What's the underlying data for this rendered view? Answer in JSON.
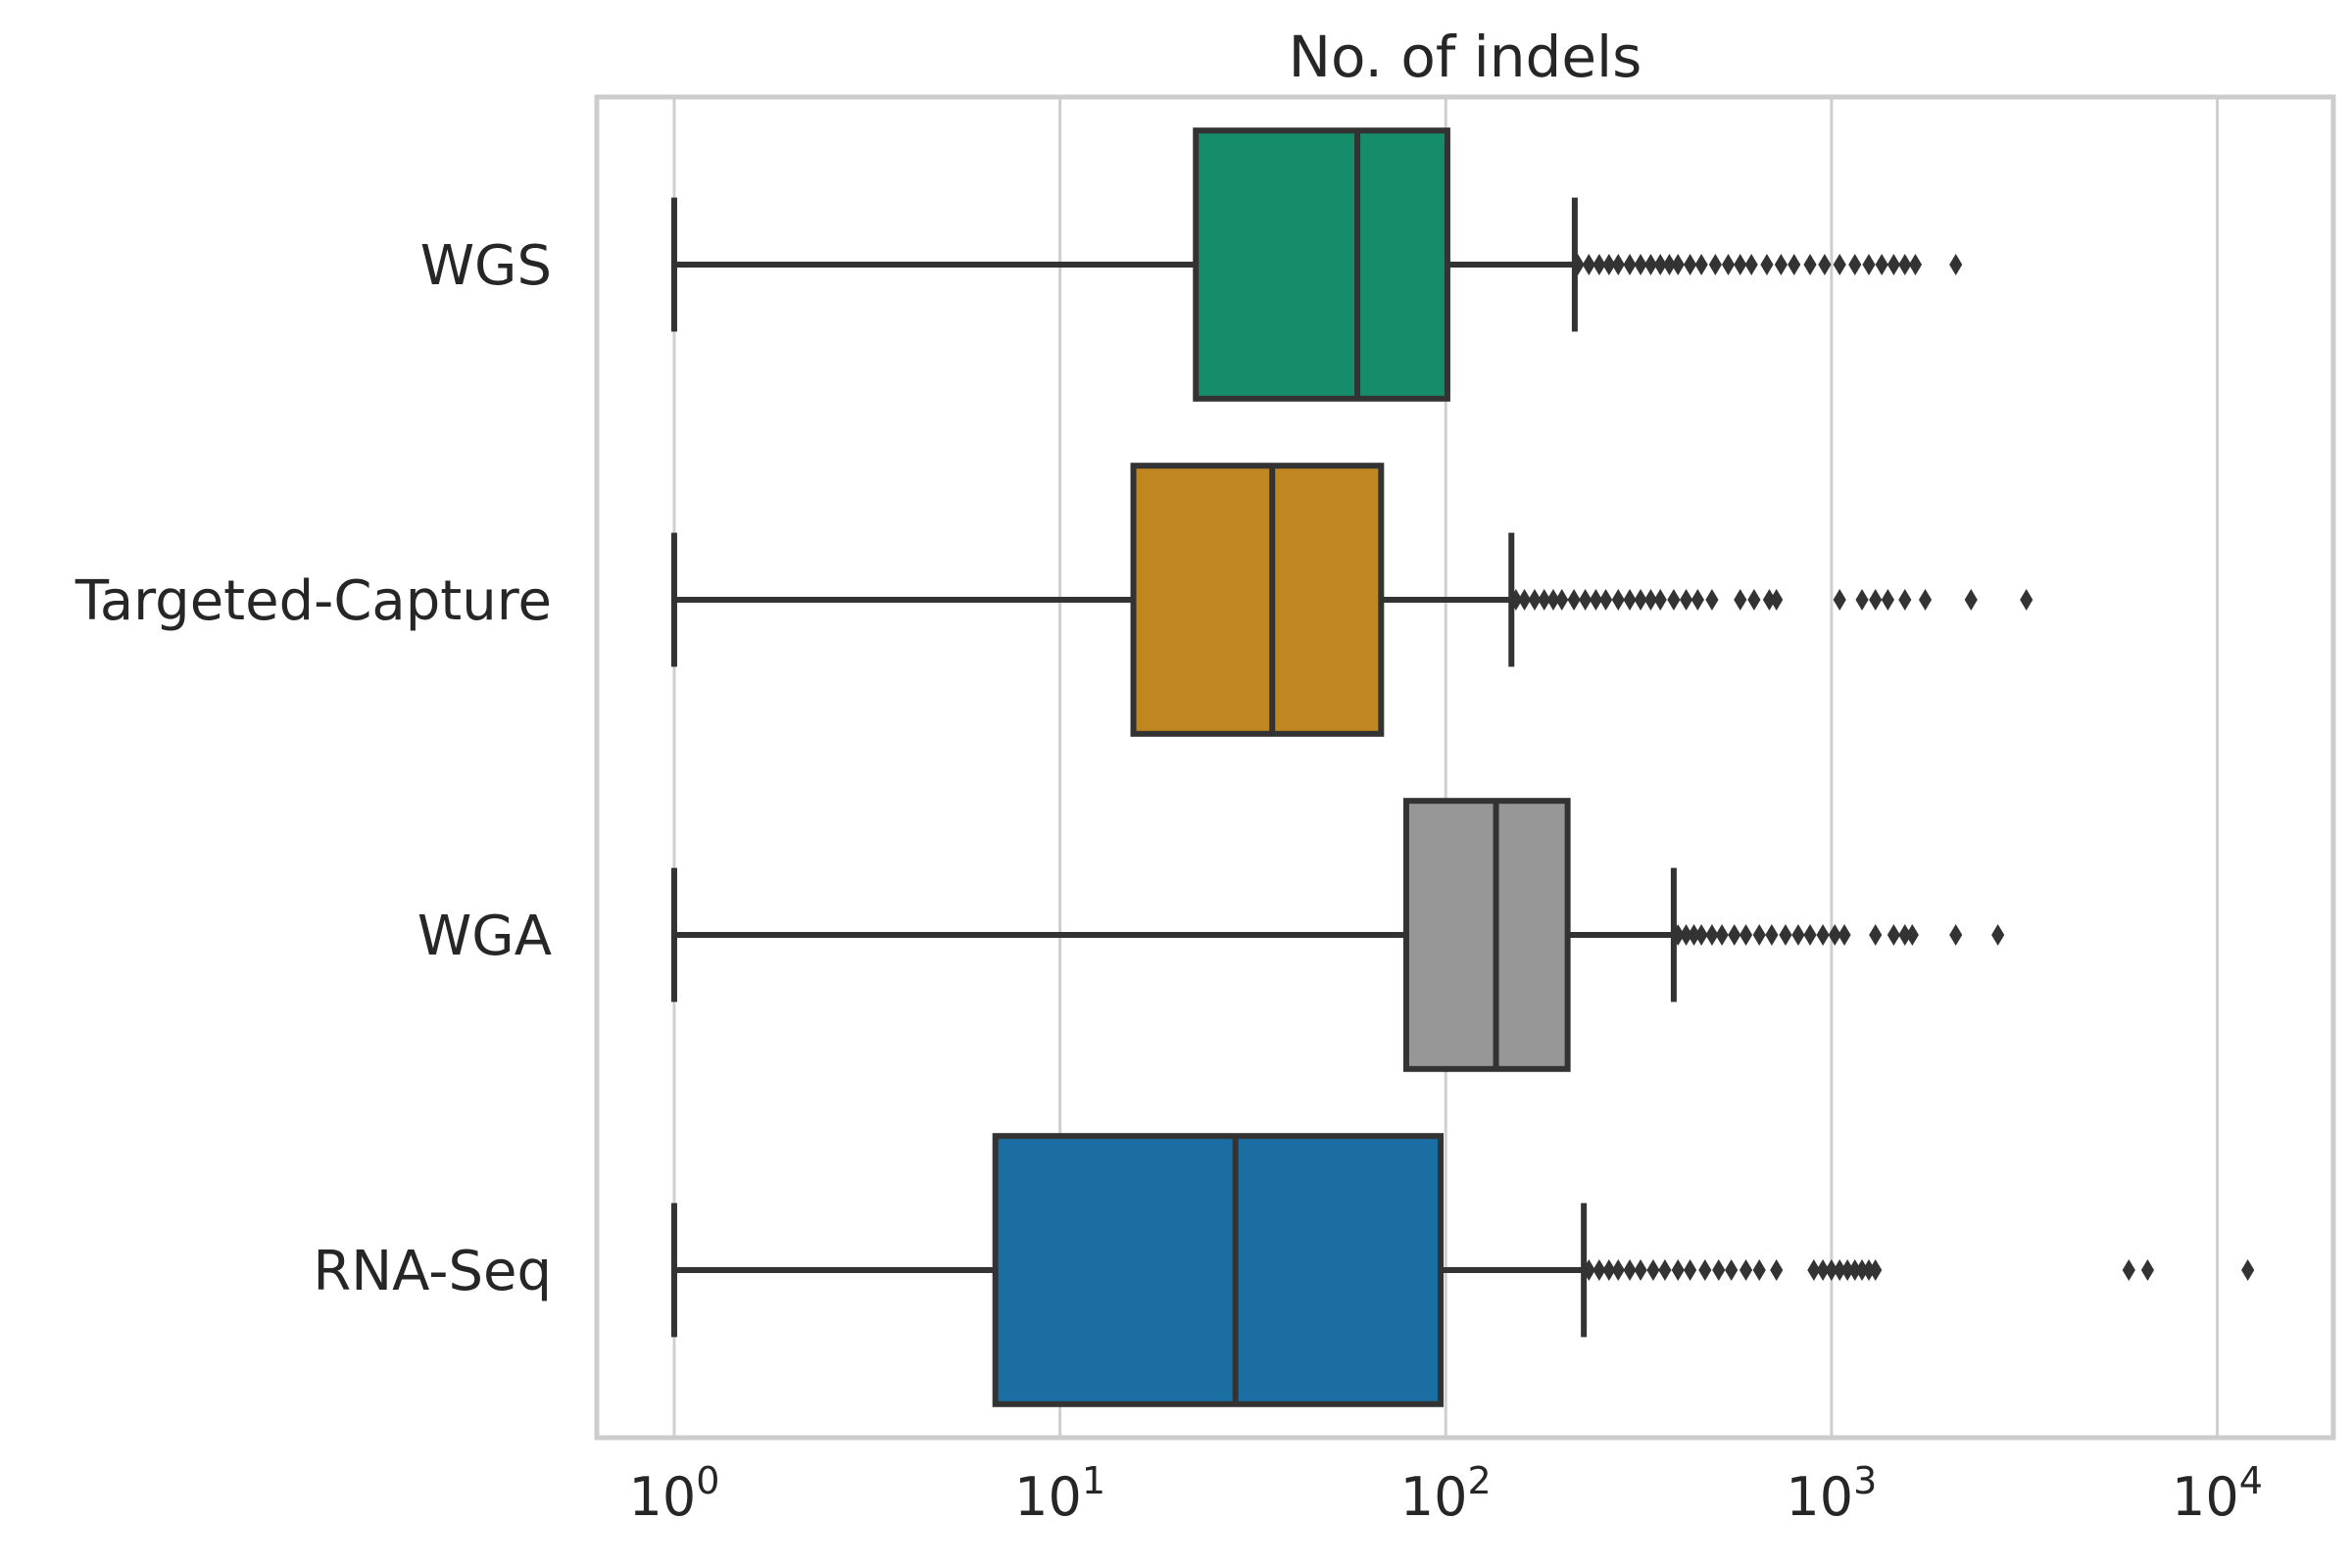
{
  "chart_data": {
    "type": "box",
    "orientation": "horizontal",
    "title": "No. of indels",
    "xlabel": "",
    "ylabel": "",
    "x_scale": "log",
    "xlim": [
      0.63,
      20000
    ],
    "x_ticks": [
      {
        "value": 1,
        "base": "10",
        "exp": "0"
      },
      {
        "value": 10,
        "base": "10",
        "exp": "1"
      },
      {
        "value": 100,
        "base": "10",
        "exp": "2"
      },
      {
        "value": 1000,
        "base": "10",
        "exp": "3"
      },
      {
        "value": 10000,
        "base": "10",
        "exp": "4"
      }
    ],
    "grid": "x-major",
    "categories": [
      "WGS",
      "Targeted-Capture",
      "WGA",
      "RNA-Seq"
    ],
    "boxes": [
      {
        "category": "WGS",
        "color": "#168d6a",
        "whisker_low": 1,
        "q1": 22.5,
        "median": 59,
        "q3": 101,
        "whisker_high": 216,
        "outliers": [
          220,
          235,
          250,
          265,
          280,
          300,
          320,
          340,
          360,
          380,
          400,
          430,
          460,
          500,
          540,
          580,
          620,
          680,
          740,
          800,
          880,
          960,
          1050,
          1150,
          1250,
          1350,
          1450,
          1550,
          1650,
          2100
        ]
      },
      {
        "category": "Targeted-Capture",
        "color": "#c08720",
        "whisker_low": 1,
        "q1": 15.5,
        "median": 35.5,
        "q3": 68,
        "whisker_high": 148,
        "outliers": [
          152,
          160,
          170,
          180,
          190,
          200,
          215,
          230,
          245,
          260,
          280,
          300,
          320,
          340,
          360,
          390,
          420,
          450,
          490,
          580,
          630,
          690,
          720,
          1050,
          1200,
          1300,
          1400,
          1550,
          1750,
          2300,
          3200
        ]
      },
      {
        "category": "WGA",
        "color": "#979797",
        "whisker_low": 1,
        "q1": 79,
        "median": 135,
        "q3": 207,
        "whisker_high": 390,
        "outliers": [
          400,
          420,
          440,
          460,
          490,
          520,
          560,
          600,
          650,
          700,
          760,
          820,
          880,
          950,
          1020,
          1080,
          1300,
          1450,
          1550,
          1620,
          2100,
          2700
        ]
      },
      {
        "category": "RNA-Seq",
        "color": "#1a6ea1",
        "whisker_low": 1,
        "q1": 6.8,
        "median": 28.5,
        "q3": 97,
        "whisker_high": 228,
        "outliers": [
          235,
          250,
          265,
          280,
          300,
          320,
          345,
          370,
          400,
          430,
          470,
          510,
          550,
          600,
          650,
          720,
          900,
          950,
          1000,
          1050,
          1100,
          1150,
          1200,
          1250,
          1300,
          5900,
          6600,
          12000
        ]
      }
    ],
    "colors": {
      "edge": "#333333",
      "grid": "#cfcfcf",
      "frame": "#cccccc",
      "text": "#262626"
    }
  }
}
